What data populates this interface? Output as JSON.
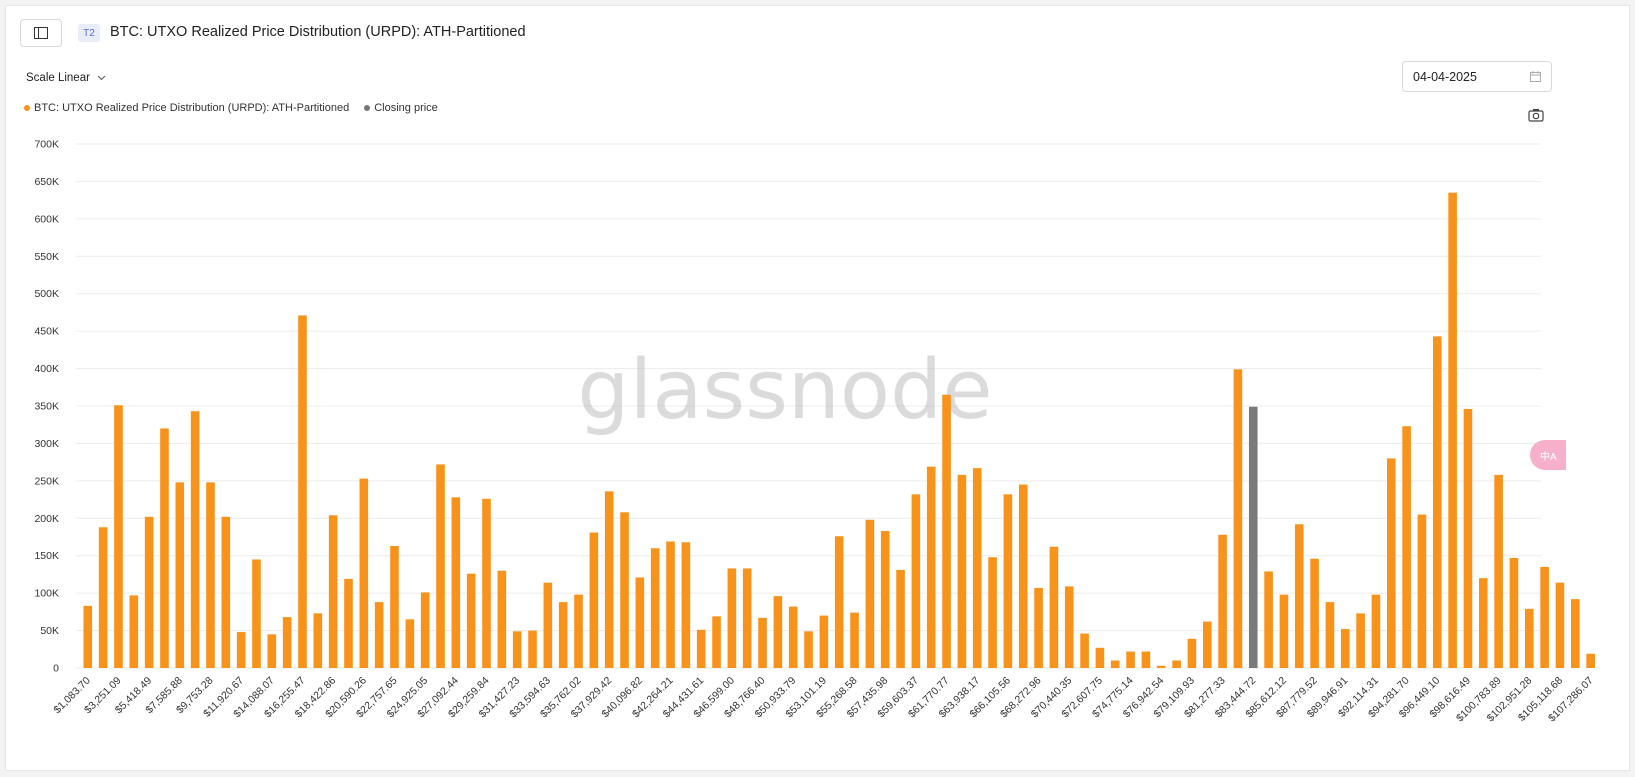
{
  "header": {
    "tier_badge": "T2",
    "title": "BTC: UTXO Realized Price Distribution (URPD): ATH-Partitioned"
  },
  "controls": {
    "scale_label": "Scale Linear",
    "date_value": "04-04-2025"
  },
  "legend": [
    {
      "label": "BTC: UTXO Realized Price Distribution (URPD): ATH-Partitioned",
      "color": "#f7931a"
    },
    {
      "label": "Closing price",
      "color": "#777777"
    }
  ],
  "watermark": "glassnode",
  "translate_badge": "中A",
  "colors": {
    "bar": "#f7931a",
    "closing": "#7a7a7a",
    "grid": "#ececec"
  },
  "chart_data": {
    "type": "bar",
    "ylim": [
      0,
      700000
    ],
    "grid": true,
    "legend_position": "top-left",
    "y_ticks": [
      {
        "v": 0,
        "label": "0"
      },
      {
        "v": 50000,
        "label": "50K"
      },
      {
        "v": 100000,
        "label": "100K"
      },
      {
        "v": 150000,
        "label": "150K"
      },
      {
        "v": 200000,
        "label": "200K"
      },
      {
        "v": 250000,
        "label": "250K"
      },
      {
        "v": 300000,
        "label": "300K"
      },
      {
        "v": 350000,
        "label": "350K"
      },
      {
        "v": 400000,
        "label": "400K"
      },
      {
        "v": 450000,
        "label": "450K"
      },
      {
        "v": 500000,
        "label": "500K"
      },
      {
        "v": 550000,
        "label": "550K"
      },
      {
        "v": 600000,
        "label": "600K"
      },
      {
        "v": 650000,
        "label": "650K"
      },
      {
        "v": 700000,
        "label": "700K"
      }
    ],
    "x_tick_labels": [
      "$1,083.70",
      "$3,251.09",
      "$5,418.49",
      "$7,585.88",
      "$9,753.28",
      "$11,920.67",
      "$14,088.07",
      "$16,255.47",
      "$18,422.86",
      "$20,590.26",
      "$22,757.65",
      "$24,925.05",
      "$27,092.44",
      "$29,259.84",
      "$31,427.23",
      "$33,594.63",
      "$35,762.02",
      "$37,929.42",
      "$40,096.82",
      "$42,264.21",
      "$44,431.61",
      "$46,599.00",
      "$48,766.40",
      "$50,933.79",
      "$53,101.19",
      "$55,268.58",
      "$57,435.98",
      "$59,603.37",
      "$61,770.77",
      "$63,938.17",
      "$66,105.56",
      "$68,272.96",
      "$70,440.35",
      "$72,607.75",
      "$74,775.14",
      "$76,942.54",
      "$79,109.93",
      "$81,277.33",
      "$83,444.72",
      "$85,612.12",
      "$87,779.52",
      "$89,946.91",
      "$92,114.31",
      "$94,281.70",
      "$96,449.10",
      "$98,616.49",
      "$100,783.89",
      "$102,951.28",
      "$105,118.68",
      "$107,286.07"
    ],
    "values": [
      83000,
      188000,
      351000,
      97000,
      202000,
      320000,
      248000,
      343000,
      248000,
      202000,
      48000,
      145000,
      45000,
      68000,
      471000,
      73000,
      204000,
      119000,
      253000,
      88000,
      163000,
      65000,
      101000,
      272000,
      228000,
      126000,
      226000,
      130000,
      49000,
      50000,
      114000,
      88000,
      98000,
      181000,
      236000,
      208000,
      121000,
      160000,
      169000,
      168000,
      51000,
      69000,
      133000,
      133000,
      67000,
      96000,
      82000,
      49000,
      70000,
      176000,
      74000,
      198000,
      183000,
      131000,
      232000,
      269000,
      365000,
      258000,
      267000,
      148000,
      232000,
      245000,
      107000,
      162000,
      109000,
      46000,
      27000,
      10000,
      22000,
      22000,
      3000,
      10000,
      39000,
      62000,
      178000,
      399000,
      349000,
      129000,
      98000,
      192000,
      146000,
      88000,
      52000,
      73000,
      98000,
      280000,
      323000,
      205000,
      443000,
      635000,
      346000,
      120000,
      258000,
      147000,
      79000,
      135000,
      114000,
      92000,
      19000
    ],
    "closing_price_index": 76
  }
}
